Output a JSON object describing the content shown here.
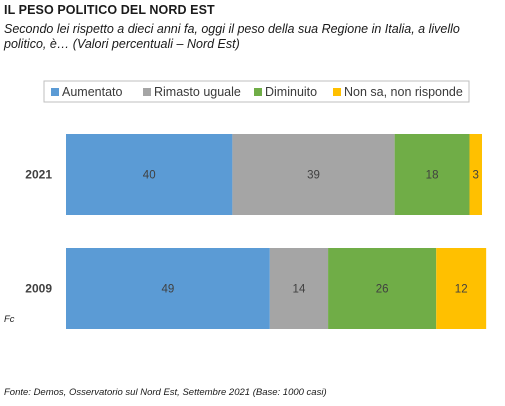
{
  "header": {
    "title": "IL PESO POLITICO DEL NORD EST",
    "subtitle": "Secondo lei rispetto a dieci anni fa, oggi il peso della sua Regione in Italia, a livello politico, è… (Valori percentuali – Nord Est)"
  },
  "chart_data": {
    "type": "bar",
    "orientation": "horizontal",
    "stacked": true,
    "categories": [
      "2021",
      "2009"
    ],
    "series": [
      {
        "name": "Aumentato",
        "color": "#5b9bd5",
        "values": [
          40,
          49
        ]
      },
      {
        "name": "Rimasto uguale",
        "color": "#a5a5a5",
        "values": [
          39,
          14
        ]
      },
      {
        "name": "Diminuito",
        "color": "#70ad47",
        "values": [
          18,
          26
        ]
      },
      {
        "name": "Non sa, non risponde",
        "color": "#ffc000",
        "values": [
          3,
          12
        ]
      }
    ],
    "xlim": [
      0,
      100
    ],
    "legend": "top",
    "grid": false
  },
  "fragment": "Fc",
  "footnote": "Fonte: Demos, Osservatorio sul Nord Est, Settembre 2021 (Base: 1000 casi)"
}
